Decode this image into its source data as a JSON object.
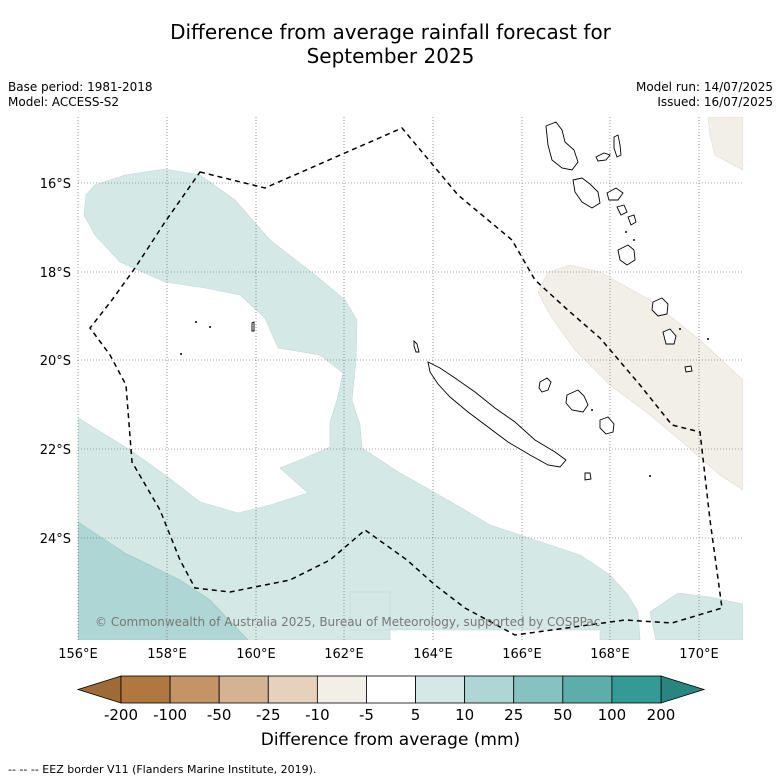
{
  "title_line1": "Difference from average rainfall forecast for",
  "title_line2": "September 2025",
  "base_period": "Base period: 1981-2018",
  "model": "Model: ACCESS-S2",
  "model_run": "Model run: 14/07/2025",
  "issued": "Issued: 16/07/2025",
  "copyright": "© Commonwealth of Australia 2025, Bureau of Meteorology, supported by COSPPac",
  "lon_labels": [
    "156°E",
    "158°E",
    "160°E",
    "162°E",
    "164°E",
    "166°E",
    "168°E",
    "170°E"
  ],
  "lat_labels": [
    "16°S",
    "18°S",
    "20°S",
    "22°S",
    "24°S"
  ],
  "colorbar": {
    "ticks": [
      "-200",
      "-100",
      "-50",
      "-25",
      "-10",
      "-5",
      "5",
      "10",
      "25",
      "50",
      "100",
      "200"
    ],
    "colors": [
      "#b07840",
      "#c29466",
      "#d4b292",
      "#e6d1bd",
      "#f2eee8",
      "#ffffff",
      "#d4e9e6",
      "#aed6d4",
      "#86c2bf",
      "#5daeab",
      "#349a96"
    ],
    "low_extend_color": "#9e6a35",
    "high_extend_color": "#2a8580",
    "label": "Difference from average (mm)"
  },
  "footnote": "--  --  -- EEZ border V11 (Flanders Marine Institute, 2019)."
}
